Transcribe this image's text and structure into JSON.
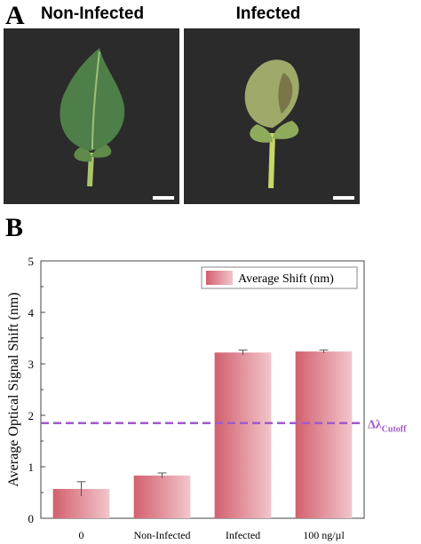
{
  "panel_a": {
    "letter": "A",
    "left_title": "Non-Infected",
    "right_title": "Infected"
  },
  "panel_b": {
    "letter": "B"
  },
  "chart_data": {
    "type": "bar",
    "title": "",
    "xlabel": "",
    "ylabel": "Average Optical Signal Shift (nm)",
    "categories": [
      "0",
      "Non-Infected",
      "Infected",
      "100 ng/µl"
    ],
    "series": [
      {
        "name": "Average Shift (nm)",
        "values": [
          0.57,
          0.83,
          3.22,
          3.24
        ],
        "errors": [
          0.14,
          0.05,
          0.05,
          0.03
        ]
      }
    ],
    "ylim": [
      0,
      5
    ],
    "yticks": [
      "0",
      "1",
      "2",
      "3",
      "4",
      "5"
    ],
    "cutoff": {
      "value": 1.85,
      "label": "Δλ",
      "label_sub": "Cutoff"
    },
    "legend_position": "top-right",
    "grid": false,
    "colors": {
      "bar_dark": "#d2606e",
      "bar_light": "#f2c6cc",
      "cutoff": "#a15bc9"
    }
  }
}
